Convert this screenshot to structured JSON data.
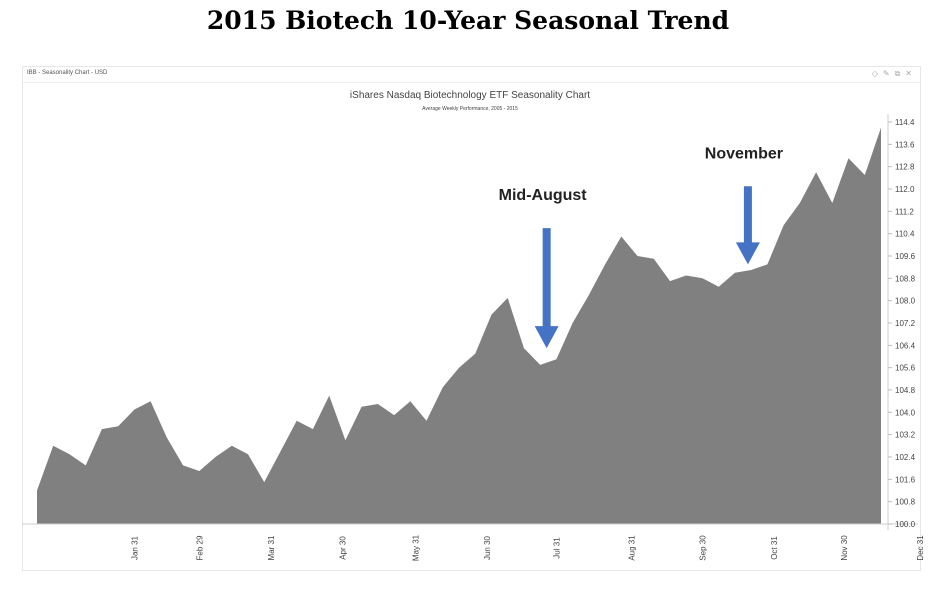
{
  "page": {
    "title": "2015 Biotech 10-Year Seasonal Trend"
  },
  "window": {
    "label": "IBB - Seasonality Chart - USD",
    "controls": [
      {
        "name": "diamond-icon",
        "glyph": "◇"
      },
      {
        "name": "pencil-icon",
        "glyph": "✎"
      },
      {
        "name": "restore-icon",
        "glyph": "⧉"
      },
      {
        "name": "close-icon",
        "glyph": "✕"
      }
    ]
  },
  "chart_data": {
    "type": "area",
    "title": "iShares Nasdaq Biotechnology ETF Seasonality Chart",
    "subtitle": "Average Weekly Performance, 2005 - 2015",
    "color": "#808080",
    "ylim": [
      100.0,
      114.4
    ],
    "y_ticks": [
      "100.0",
      "100.8",
      "101.6",
      "102.4",
      "103.2",
      "104.0",
      "104.8",
      "105.6",
      "106.4",
      "107.2",
      "108.0",
      "108.8",
      "109.6",
      "110.4",
      "111.2",
      "112.0",
      "112.8",
      "113.6",
      "114.4"
    ],
    "x_ticks": [
      {
        "week": 6.2,
        "label": "Jan 31"
      },
      {
        "week": 10.2,
        "label": "Feb 29"
      },
      {
        "week": 14.6,
        "label": "Mar 31"
      },
      {
        "week": 19.0,
        "label": "Apr 30"
      },
      {
        "week": 23.5,
        "label": "May 31"
      },
      {
        "week": 27.9,
        "label": "Jun 30"
      },
      {
        "week": 32.2,
        "label": "Jul 31"
      },
      {
        "week": 36.8,
        "label": "Aug 31"
      },
      {
        "week": 41.2,
        "label": "Sep 30"
      },
      {
        "week": 45.6,
        "label": "Oct 31"
      },
      {
        "week": 49.9,
        "label": "Nov 30"
      },
      {
        "week": 54.6,
        "label": "Dec 31"
      }
    ],
    "values": [
      101.2,
      102.8,
      102.5,
      102.1,
      103.4,
      103.5,
      104.1,
      104.4,
      103.1,
      102.1,
      101.9,
      102.4,
      102.8,
      102.5,
      101.5,
      102.6,
      103.7,
      103.4,
      104.6,
      103.0,
      104.2,
      104.3,
      103.9,
      104.4,
      103.7,
      104.9,
      105.6,
      106.1,
      107.5,
      108.1,
      106.3,
      105.7,
      105.9,
      107.2,
      108.2,
      109.3,
      110.3,
      109.6,
      109.5,
      108.7,
      108.9,
      108.8,
      108.5,
      109.0,
      109.1,
      109.3,
      110.7,
      111.5,
      112.6,
      111.5,
      113.1,
      112.5,
      114.2
    ],
    "annotations": [
      {
        "text": "Mid-August",
        "week": 31.4,
        "label_value": 111.6,
        "arrow_from": 110.6,
        "arrow_to": 106.3,
        "arrow_color": "#4472C4"
      },
      {
        "text": "November",
        "week": 43.8,
        "label_value": 113.1,
        "arrow_from": 112.1,
        "arrow_to": 109.3,
        "arrow_color": "#4472C4"
      }
    ]
  }
}
